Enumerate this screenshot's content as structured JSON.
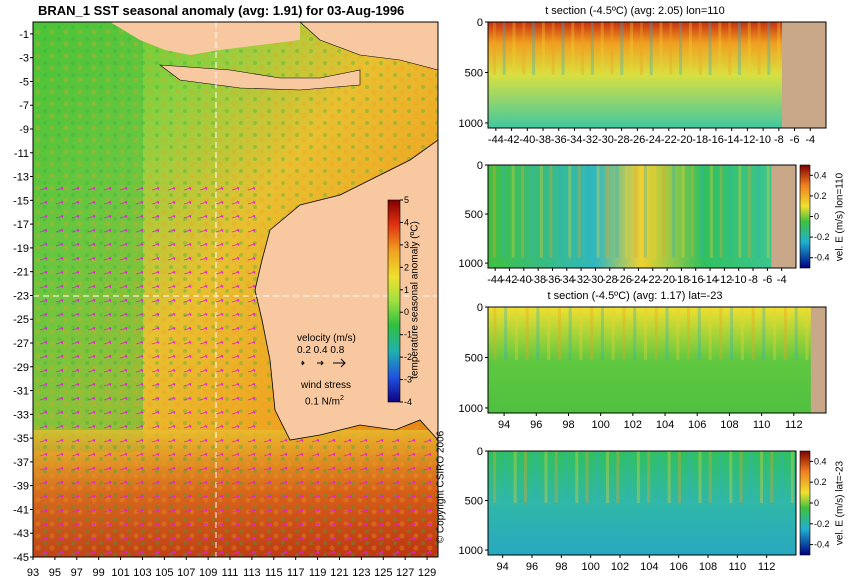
{
  "main_title": "BRAN_1  SST seasonal anomaly  (avg: 1.91) for 03-Aug-1996",
  "copyright": "© Copyright CSIRO 2006",
  "map": {
    "yticks": [
      "-1",
      "-3",
      "-5",
      "-7",
      "-9",
      "-11",
      "-13",
      "-15",
      "-17",
      "-19",
      "-21",
      "-23",
      "-25",
      "-27",
      "-29",
      "-31",
      "-33",
      "-35",
      "-37",
      "-39",
      "-41",
      "-43",
      "-45"
    ],
    "xticks": [
      "93",
      "95",
      "97",
      "99",
      "101",
      "103",
      "105",
      "107",
      "109",
      "111",
      "113",
      "115",
      "117",
      "119",
      "121",
      "123",
      "125",
      "127",
      "129"
    ],
    "colorbar_ticks": [
      "5",
      "4",
      "3",
      "2",
      "1",
      "0",
      "-1",
      "-2",
      "-3",
      "-4"
    ],
    "colorbar_label": "temperature seasonal anomaly (ºC)",
    "velocity_label": "velocity (m/s)",
    "velocity_values": "0.2 0.4 0.8",
    "wind_label": "wind stress",
    "wind_value": "0.1 N/m",
    "wind_exp": "2"
  },
  "chart_data": [
    {
      "type": "heatmap",
      "title": "BRAN_1  SST seasonal anomaly  (avg: 1.91) for 03-Aug-1996",
      "x_ticks": [
        93,
        95,
        97,
        99,
        101,
        103,
        105,
        107,
        109,
        111,
        113,
        115,
        117,
        119,
        121,
        123,
        125,
        127,
        129
      ],
      "y_ticks": [
        -1,
        -3,
        -5,
        -7,
        -9,
        -11,
        -13,
        -15,
        -17,
        -19,
        -21,
        -23,
        -25,
        -27,
        -29,
        -31,
        -33,
        -35,
        -37,
        -39,
        -41,
        -43,
        -45
      ],
      "xlim": [
        93,
        130
      ],
      "ylim": [
        -45,
        0
      ],
      "colorbar": {
        "label": "temperature seasonal anomaly (ºC)",
        "range": [
          -4,
          5
        ],
        "ticks": [
          5,
          4,
          3,
          2,
          1,
          0,
          -1,
          -2,
          -3,
          -4
        ]
      },
      "average": 1.91,
      "date": "03-Aug-1996",
      "section_lines": {
        "lon": 110,
        "lat": -23
      }
    },
    {
      "type": "heatmap",
      "title": "t section (-4.5ºC) (avg: 2.05) lon=110",
      "x_ticks": [
        -44,
        -42,
        -40,
        -38,
        -36,
        -34,
        -32,
        -30,
        -28,
        -26,
        -24,
        -22,
        -20,
        -18,
        -16,
        -14,
        -12,
        -10,
        -8,
        -6,
        -4
      ],
      "y_ticks": [
        0,
        500,
        1000
      ],
      "xlim": [
        -45,
        -2
      ],
      "ylim": [
        1050,
        0
      ],
      "average": 2.05
    },
    {
      "type": "heatmap",
      "title": "",
      "x_ticks": [
        -44,
        -42,
        -40,
        -38,
        -36,
        -34,
        -32,
        -30,
        -28,
        -26,
        -24,
        -22,
        -20,
        -18,
        -16,
        -14,
        -12,
        -10,
        -8,
        -6,
        -4
      ],
      "y_ticks": [
        0,
        500,
        1000
      ],
      "xlim": [
        -45,
        -2
      ],
      "ylim": [
        1050,
        0
      ],
      "colorbar": {
        "label": "vel. E (m/s) lon=110",
        "range": [
          -0.5,
          0.5
        ],
        "ticks": [
          0.4,
          0.2,
          0,
          -0.2,
          -0.4
        ]
      }
    },
    {
      "type": "heatmap",
      "title": "t section (-4.5ºC) (avg: 1.17) lat=-23",
      "x_ticks": [
        94,
        96,
        98,
        100,
        102,
        104,
        106,
        108,
        110,
        112
      ],
      "y_ticks": [
        0,
        500,
        1000
      ],
      "xlim": [
        93,
        114
      ],
      "ylim": [
        1050,
        0
      ],
      "average": 1.17
    },
    {
      "type": "heatmap",
      "title": "",
      "x_ticks": [
        94,
        96,
        98,
        100,
        102,
        104,
        106,
        108,
        110,
        112
      ],
      "y_ticks": [
        0,
        500,
        1000
      ],
      "xlim": [
        93,
        114
      ],
      "ylim": [
        1050,
        0
      ],
      "colorbar": {
        "label": "vel. E (m/s) lat=-23",
        "range": [
          -0.5,
          0.5
        ],
        "ticks": [
          0.4,
          0.2,
          0,
          -0.2,
          -0.4
        ]
      }
    }
  ],
  "panels": [
    {
      "title": "t section (-4.5ºC) (avg: 2.05) lon=110",
      "xticks": [
        "-44",
        "-42",
        "-40",
        "-38",
        "-36",
        "-34",
        "-32",
        "-30",
        "-28",
        "-26",
        "-24",
        "-22",
        "-20",
        "-18",
        "-16",
        "-14",
        "-12",
        "-10",
        "-8",
        "-6",
        "-4"
      ],
      "yticks": [
        "0",
        "500",
        "1000"
      ]
    },
    {
      "title": "",
      "xticks": [
        "-44",
        "-42",
        "-40",
        "-38",
        "-36",
        "-34",
        "-32",
        "-30",
        "-28",
        "-26",
        "-24",
        "-22",
        "-20",
        "-18",
        "-16",
        "-14",
        "-12",
        "-10",
        "-8",
        "-6",
        "-4"
      ],
      "yticks": [
        "0",
        "500",
        "1000"
      ],
      "cb_ticks": [
        "0.4",
        "0.2",
        "0",
        "-0.2",
        "-0.4"
      ],
      "cb_label": "vel. E (m/s) lon=110"
    },
    {
      "title": "t section (-4.5ºC) (avg: 1.17) lat=-23",
      "xticks": [
        "94",
        "96",
        "98",
        "100",
        "102",
        "104",
        "106",
        "108",
        "110",
        "112"
      ],
      "yticks": [
        "0",
        "500",
        "1000"
      ]
    },
    {
      "title": "",
      "xticks": [
        "94",
        "96",
        "98",
        "100",
        "102",
        "104",
        "106",
        "108",
        "110",
        "112"
      ],
      "yticks": [
        "0",
        "500",
        "1000"
      ],
      "cb_ticks": [
        "0.4",
        "0.2",
        "0",
        "-0.2",
        "-0.4"
      ],
      "cb_label": "vel. E (m/s) lat=-23"
    }
  ]
}
